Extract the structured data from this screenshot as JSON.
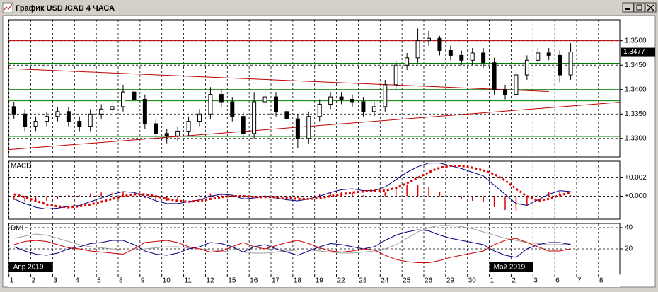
{
  "window": {
    "title": "График USD /CAD  4 ЧАСА"
  },
  "chart_data": [
    {
      "type": "candlestick",
      "open": [
        1.3365,
        1.335,
        1.3325,
        1.3335,
        1.3345,
        1.3355,
        1.3335,
        1.3325,
        1.335,
        1.336,
        1.3365,
        1.3395,
        1.338,
        1.333,
        1.331,
        1.3305,
        1.3315,
        1.3335,
        1.335,
        1.339,
        1.3375,
        1.3345,
        1.331,
        1.3375,
        1.3385,
        1.3355,
        1.334,
        1.33,
        1.3345,
        1.337,
        1.3385,
        1.338,
        1.3375,
        1.3355,
        1.3365,
        1.341,
        1.345,
        1.3465,
        1.35,
        1.3505,
        1.348,
        1.347,
        1.346,
        1.3475,
        1.3455,
        1.34,
        1.339,
        1.343,
        1.346,
        1.3475,
        1.347,
        1.343
      ],
      "high": [
        1.3375,
        1.336,
        1.3345,
        1.3355,
        1.3365,
        1.3365,
        1.3345,
        1.336,
        1.337,
        1.3375,
        1.341,
        1.3405,
        1.339,
        1.334,
        1.332,
        1.3325,
        1.3345,
        1.336,
        1.3405,
        1.34,
        1.3385,
        1.3355,
        1.3395,
        1.3405,
        1.3395,
        1.3365,
        1.335,
        1.3355,
        1.338,
        1.3395,
        1.3395,
        1.339,
        1.3385,
        1.3375,
        1.342,
        1.346,
        1.3475,
        1.3525,
        1.352,
        1.351,
        1.349,
        1.348,
        1.3485,
        1.3485,
        1.3465,
        1.341,
        1.344,
        1.347,
        1.3485,
        1.3485,
        1.348,
        1.3495
      ],
      "low": [
        1.334,
        1.3315,
        1.3315,
        1.3325,
        1.3335,
        1.3325,
        1.3315,
        1.3315,
        1.334,
        1.335,
        1.3355,
        1.337,
        1.332,
        1.33,
        1.329,
        1.3295,
        1.3305,
        1.3325,
        1.334,
        1.3365,
        1.3335,
        1.33,
        1.33,
        1.3365,
        1.3345,
        1.333,
        1.328,
        1.329,
        1.3335,
        1.336,
        1.337,
        1.3365,
        1.3345,
        1.3345,
        1.3355,
        1.34,
        1.344,
        1.3455,
        1.349,
        1.347,
        1.346,
        1.345,
        1.345,
        1.3445,
        1.339,
        1.338,
        1.338,
        1.342,
        1.345,
        1.346,
        1.3415,
        1.342
      ],
      "close": [
        1.335,
        1.3325,
        1.3335,
        1.3345,
        1.3355,
        1.3335,
        1.3325,
        1.335,
        1.336,
        1.3365,
        1.3395,
        1.338,
        1.333,
        1.331,
        1.3305,
        1.3315,
        1.3335,
        1.335,
        1.339,
        1.3375,
        1.3345,
        1.331,
        1.3375,
        1.3385,
        1.3355,
        1.334,
        1.33,
        1.3345,
        1.337,
        1.3385,
        1.338,
        1.3375,
        1.3355,
        1.3365,
        1.341,
        1.345,
        1.3465,
        1.35,
        1.3505,
        1.348,
        1.347,
        1.346,
        1.3475,
        1.3455,
        1.34,
        1.339,
        1.343,
        1.346,
        1.3475,
        1.347,
        1.343,
        1.3477
      ],
      "color_up": "#ffffff",
      "color_down": "#000000",
      "ylim": [
        1.3262,
        1.3543
      ],
      "yticks": [
        {
          "value": 1.33,
          "label": "1.3300"
        },
        {
          "value": 1.335,
          "label": "1.3350"
        },
        {
          "value": 1.34,
          "label": "1.3400"
        },
        {
          "value": 1.345,
          "label": "1.3450"
        },
        {
          "value": 1.35,
          "label": "1.3500"
        }
      ],
      "last_price": 1.3477,
      "xlim": [
        -0.5,
        55.5
      ],
      "xticks": [
        {
          "value": 0,
          "label": "1"
        },
        {
          "value": 2,
          "label": "2"
        },
        {
          "value": 4,
          "label": "3"
        },
        {
          "value": 6,
          "label": "4"
        },
        {
          "value": 8,
          "label": "5"
        },
        {
          "value": 10,
          "label": "8"
        },
        {
          "value": 12,
          "label": "9"
        },
        {
          "value": 14,
          "label": "10"
        },
        {
          "value": 16,
          "label": "11"
        },
        {
          "value": 18,
          "label": "12"
        },
        {
          "value": 20,
          "label": "15"
        },
        {
          "value": 22,
          "label": "16"
        },
        {
          "value": 24,
          "label": "17"
        },
        {
          "value": 26,
          "label": "18"
        },
        {
          "value": 28,
          "label": "19"
        },
        {
          "value": 30,
          "label": "22"
        },
        {
          "value": 32,
          "label": "23"
        },
        {
          "value": 34,
          "label": "24"
        },
        {
          "value": 36,
          "label": "25"
        },
        {
          "value": 38,
          "label": "26"
        },
        {
          "value": 40,
          "label": "29"
        },
        {
          "value": 42,
          "label": "30"
        },
        {
          "value": 44,
          "label": "1"
        },
        {
          "value": 46,
          "label": "2"
        },
        {
          "value": 48,
          "label": "3"
        },
        {
          "value": 50,
          "label": "6"
        },
        {
          "value": 52,
          "label": "7"
        },
        {
          "value": 54,
          "label": "8"
        }
      ],
      "month_labels": [
        {
          "value": 0,
          "label": "Апр 2019"
        },
        {
          "value": 44,
          "label": "Май 2019"
        }
      ],
      "hlines": [
        {
          "value": 1.35,
          "color": "#c00000"
        },
        {
          "value": 1.3454,
          "color": "#008000"
        },
        {
          "value": 1.34,
          "color": "#008000"
        },
        {
          "value": 1.3377,
          "color": "#008000"
        },
        {
          "value": 1.3304,
          "color": "#008000"
        }
      ],
      "trendlines": [
        {
          "x": [
            -0.5,
            49
          ],
          "y": [
            1.3443,
            1.3396
          ],
          "color": "#c00000"
        },
        {
          "x": [
            -0.5,
            55.5
          ],
          "y": [
            1.3277,
            1.3374
          ],
          "color": "#c00000"
        }
      ],
      "grid": true
    },
    {
      "type": "macd",
      "title": "MACD",
      "ylim": [
        -0.0025,
        0.0038
      ],
      "yticks": [
        {
          "value": 0.002,
          "label": "+0.002"
        },
        {
          "value": 0,
          "label": "+0.000"
        }
      ],
      "histogram": [
        -0.0004,
        -0.0006,
        -0.0006,
        -0.0005,
        -0.0003,
        0.0001,
        0.0001,
        0.0003,
        0.0004,
        0.0005,
        0.0005,
        0.0002,
        -0.0002,
        -0.0005,
        -0.0005,
        -0.0003,
        0.0,
        0.0001,
        0.0003,
        0.0003,
        0.0001,
        -0.0003,
        -0.0001,
        0.0001,
        -0.0001,
        -0.0002,
        -0.0002,
        0.0,
        0.0002,
        0.0004,
        0.0005,
        0.0004,
        0.0001,
        0.0,
        0.0004,
        0.0009,
        0.0012,
        0.0012,
        0.001,
        0.0005,
        0.0,
        -0.0003,
        -0.0005,
        -0.0006,
        -0.0012,
        -0.0015,
        -0.0016,
        -0.001,
        0.0001,
        0.0005,
        0.0005,
        0.0001
      ],
      "macd": [
        -0.0003,
        -0.0008,
        -0.0012,
        -0.0014,
        -0.0013,
        -0.0011,
        -0.001,
        -0.0006,
        -0.0002,
        0.0002,
        0.0005,
        0.0004,
        0.0,
        -0.0005,
        -0.0008,
        -0.0008,
        -0.0006,
        -0.0004,
        0.0,
        0.0002,
        0.0001,
        -0.0003,
        -0.0002,
        0.0,
        -0.0002,
        -0.0004,
        -0.0005,
        -0.0003,
        0.0,
        0.0004,
        0.0007,
        0.0008,
        0.0006,
        0.0006,
        0.001,
        0.0018,
        0.0026,
        0.0032,
        0.0036,
        0.0036,
        0.0033,
        0.003,
        0.0026,
        0.0022,
        0.0012,
        0.0002,
        -0.0008,
        -0.001,
        -0.0004,
        0.0002,
        0.0006,
        0.0005
      ],
      "signal": [
        0.0002,
        -0.0001,
        -0.0005,
        -0.0009,
        -0.0011,
        -0.0012,
        -0.0011,
        -0.0009,
        -0.0006,
        -0.0003,
        0.0,
        0.0002,
        0.0002,
        0.0,
        -0.0003,
        -0.0005,
        -0.0006,
        -0.0005,
        -0.0003,
        -0.0001,
        0.0,
        0.0,
        -0.0001,
        -0.0001,
        -0.0001,
        -0.0002,
        -0.0003,
        -0.0003,
        -0.0002,
        0.0,
        0.0002,
        0.0004,
        0.0005,
        0.0006,
        0.0006,
        0.0009,
        0.0014,
        0.002,
        0.0026,
        0.0031,
        0.0033,
        0.0033,
        0.0031,
        0.0028,
        0.0024,
        0.0017,
        0.0008,
        0.0,
        -0.0005,
        -0.0003,
        0.0001,
        0.0004
      ],
      "histogram_color": "#e00000",
      "macd_color": "#000080",
      "signal_color": "#e00000",
      "grid": true
    },
    {
      "type": "dmi",
      "title": "DMI",
      "ylim": [
        -4,
        44
      ],
      "yticks": [
        40,
        20
      ],
      "adx": [
        30,
        32,
        34,
        33,
        30,
        27,
        24,
        22,
        21,
        20,
        19,
        19,
        20,
        21,
        22,
        22,
        21,
        20,
        19,
        18,
        17,
        17,
        16,
        16,
        17,
        18,
        19,
        19,
        18,
        17,
        16,
        16,
        17,
        18,
        20,
        24,
        30,
        36,
        40,
        42,
        42,
        41,
        39,
        36,
        33,
        30,
        28,
        26,
        25,
        24,
        24,
        25
      ],
      "plus_di": [
        22,
        18,
        15,
        14,
        16,
        20,
        22,
        25,
        26,
        28,
        28,
        24,
        18,
        15,
        14,
        16,
        20,
        22,
        26,
        25,
        22,
        17,
        22,
        24,
        20,
        17,
        14,
        18,
        22,
        25,
        24,
        22,
        20,
        22,
        28,
        33,
        36,
        38,
        37,
        33,
        30,
        28,
        26,
        24,
        18,
        14,
        12,
        20,
        24,
        26,
        26,
        24
      ],
      "minus_di": [
        24,
        27,
        28,
        27,
        24,
        21,
        20,
        18,
        17,
        16,
        15,
        20,
        26,
        27,
        28,
        26,
        22,
        20,
        17,
        18,
        22,
        26,
        22,
        20,
        23,
        26,
        28,
        25,
        21,
        18,
        17,
        18,
        20,
        19,
        14,
        10,
        8,
        7,
        7,
        9,
        12,
        14,
        16,
        18,
        24,
        28,
        30,
        26,
        22,
        18,
        18,
        20
      ],
      "adx_color": "#a0a0a0",
      "plus_di_color": "#000080",
      "minus_di_color": "#d00000",
      "grid": true
    }
  ]
}
